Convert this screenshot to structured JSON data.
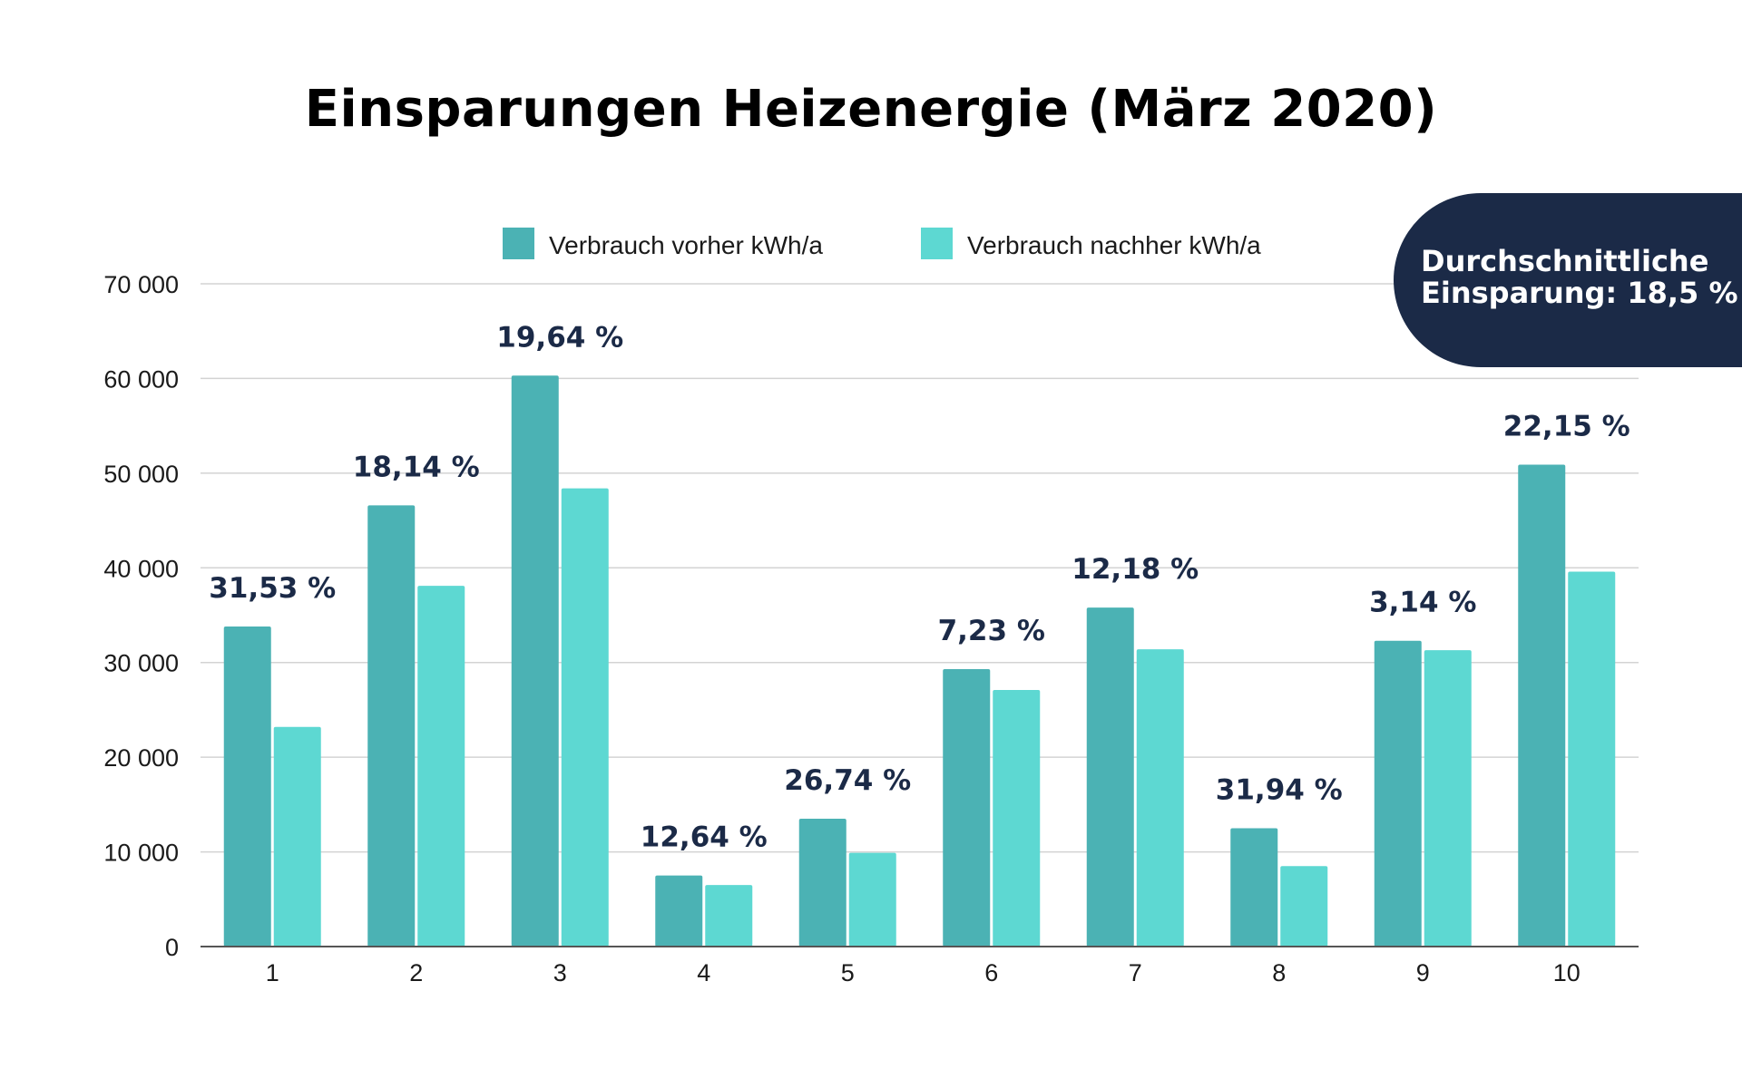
{
  "chart_data": {
    "type": "bar",
    "title": "Einsparungen Heizenergie (März 2020)",
    "categories": [
      "1",
      "2",
      "3",
      "4",
      "5",
      "6",
      "7",
      "8",
      "9",
      "10"
    ],
    "series": [
      {
        "name": "Verbrauch vorher kWh/a",
        "color": "#4bb2b4",
        "values": [
          33800,
          46600,
          60300,
          7500,
          13500,
          29300,
          35800,
          12500,
          32300,
          50900
        ]
      },
      {
        "name": "Verbrauch nachher kWh/a",
        "color": "#5dd8d2",
        "values": [
          23200,
          38100,
          48400,
          6500,
          9900,
          27100,
          31400,
          8500,
          31300,
          39600
        ]
      }
    ],
    "percent_labels": [
      "31,53 %",
      "18,14 %",
      "19,64 %",
      "12,64 %",
      "26,74 %",
      "7,23 %",
      "12,18 %",
      "31,94 %",
      "3,14 %",
      "22,15 %"
    ],
    "y_ticks": [
      0,
      10000,
      20000,
      30000,
      40000,
      50000,
      60000,
      70000
    ],
    "y_tick_labels": [
      "0",
      "10 000",
      "20 000",
      "30 000",
      "40 000",
      "50 000",
      "60 000",
      "70 000"
    ],
    "ylim": [
      0,
      70000
    ],
    "xlabel": "",
    "ylabel": "",
    "grid": true,
    "legend": "top-center",
    "colors": {
      "label_text": "#1b2a47",
      "grid": "#d3d3d3",
      "axis_text": "#1a1a1a"
    }
  },
  "badge": {
    "line1": "Durchschnittliche",
    "line2": "Einsparung: 18,5 %",
    "background": "#1b2a47"
  }
}
